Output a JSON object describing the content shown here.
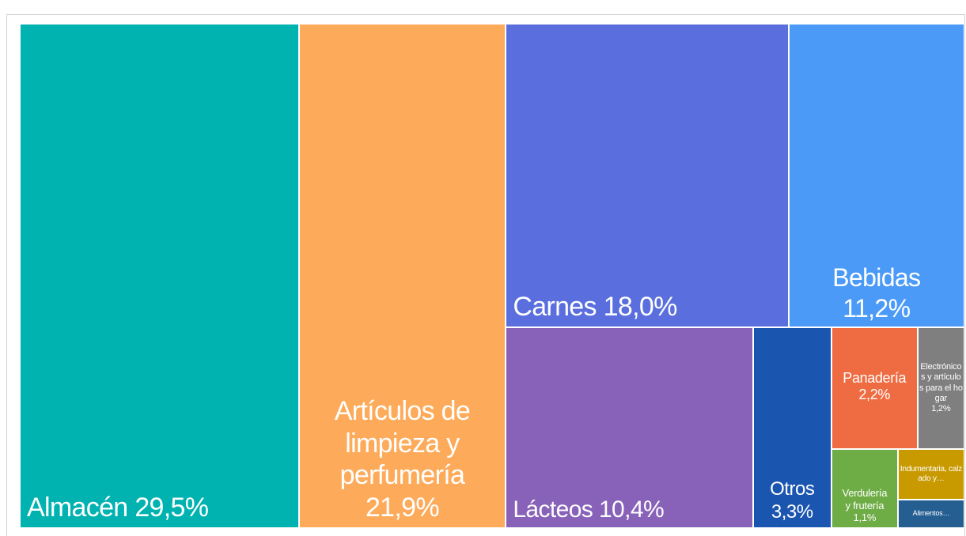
{
  "chart_data": {
    "type": "treemap",
    "categories": [
      "Almacén",
      "Artículos de limpieza y perfumería",
      "Carnes",
      "Bebidas",
      "Lácteos",
      "Otros",
      "Panadería",
      "Electrónicos y artículos para el hogar",
      "Verdulería y frutería",
      "Indumentaria, calzado y…",
      "Alimentos…"
    ],
    "values": [
      29.5,
      21.9,
      18.0,
      11.2,
      10.4,
      3.3,
      2.2,
      1.2,
      1.1,
      0.7,
      0.4
    ],
    "value_labels": [
      "29,5%",
      "21,9%",
      "18,0%",
      "11,2%",
      "10,4%",
      "3,3%",
      "2,2%",
      "1,2%",
      "1,1%",
      null,
      null
    ],
    "colors": [
      "#00b2b0",
      "#fdab5a",
      "#5a6fdd",
      "#4b9af7",
      "#8861b8",
      "#1a55b0",
      "#ef6c43",
      "#7f7f7f",
      "#6eac45",
      "#c89a00",
      "#255e91"
    ]
  }
}
